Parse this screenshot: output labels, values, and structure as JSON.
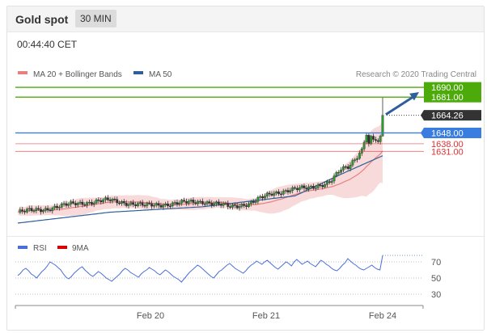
{
  "header": {
    "title": "Gold spot",
    "interval": "30 MIN",
    "time": "00:44:40 CET"
  },
  "legend": {
    "ma20": "MA 20 + Bollinger Bands",
    "ma50": "MA 50",
    "rsi": "RSI",
    "ma9": "9MA",
    "credit": "Research © 2020 Trading Central"
  },
  "colors": {
    "ma20": "#e88080",
    "bands_fill": "#f7d3d3",
    "ma50": "#2e5f9b",
    "resistance": "#4caa0a",
    "pivot": "#3a7de0",
    "support": "#e03030",
    "price_tag": "#333333",
    "arrow": "#2e5f9b",
    "rsi": "#4a6fd8",
    "rsi_ma": "#dd0000"
  },
  "chart_data": [
    {
      "type": "candlestick",
      "title": "",
      "price_levels": [
        {
          "value": 1690.0,
          "label": "1690.00",
          "kind": "resistance"
        },
        {
          "value": 1681.0,
          "label": "1681.00",
          "kind": "resistance"
        },
        {
          "value": 1664.26,
          "label": "1664.26",
          "kind": "last_price"
        },
        {
          "value": 1648.0,
          "label": "1648.00",
          "kind": "pivot"
        },
        {
          "value": 1638.0,
          "label": "1638.00",
          "kind": "support"
        },
        {
          "value": 1631.0,
          "label": "1631.00",
          "kind": "support"
        }
      ],
      "ylim": [
        1562,
        1696
      ],
      "x_tick_labels": [
        "Feb 20",
        "Feb 21",
        "Feb 24"
      ],
      "bars": 150,
      "close_path": [
        [
          0,
          1575
        ],
        [
          12,
          1578
        ],
        [
          25,
          1583
        ],
        [
          40,
          1586
        ],
        [
          55,
          1581
        ],
        [
          68,
          1583
        ],
        [
          80,
          1585
        ],
        [
          92,
          1580
        ],
        [
          100,
          1583
        ],
        [
          110,
          1592
        ],
        [
          118,
          1596
        ],
        [
          126,
          1597
        ],
        [
          135,
          1603
        ],
        [
          140,
          1614
        ],
        [
          143,
          1616
        ],
        [
          146,
          1624
        ],
        [
          149,
          1633
        ],
        [
          151,
          1646
        ],
        [
          152,
          1638
        ],
        [
          153,
          1645
        ],
        [
          154,
          1642
        ],
        [
          155,
          1641
        ],
        [
          156,
          1640
        ],
        [
          157,
          1645
        ],
        [
          158,
          1664.26
        ]
      ],
      "ma50_path": [
        [
          0,
          1565
        ],
        [
          40,
          1575
        ],
        [
          80,
          1580
        ],
        [
          120,
          1590
        ],
        [
          140,
          1610
        ],
        [
          158,
          1627
        ]
      ],
      "forecast_arrow": {
        "from": 1664.26,
        "to": 1690.0
      },
      "legend": [
        "MA 20 + Bollinger Bands",
        "MA 50"
      ]
    },
    {
      "type": "line",
      "title": "",
      "series": [
        {
          "name": "RSI",
          "values": [
            53,
            56,
            60,
            62,
            59,
            55,
            53,
            50,
            54,
            58,
            61,
            65,
            70,
            68,
            66,
            63,
            60,
            55,
            51,
            49,
            52,
            56,
            59,
            62,
            64,
            60,
            57,
            54,
            52,
            55,
            58,
            56,
            53,
            50,
            48,
            46,
            49,
            52,
            55,
            59,
            62,
            60,
            57,
            55,
            53,
            51,
            55,
            58,
            60,
            63,
            61,
            59,
            56,
            54,
            57,
            60,
            58,
            55,
            52,
            50,
            48,
            45,
            49,
            53,
            57,
            60,
            63,
            66,
            64,
            61,
            58,
            55,
            52,
            50,
            54,
            58,
            60,
            63,
            66,
            68,
            65,
            62,
            60,
            58,
            56,
            59,
            63,
            66,
            68,
            71,
            69,
            67,
            70,
            72,
            69,
            66,
            63,
            61,
            64,
            67,
            70,
            68,
            65,
            70,
            73,
            70,
            67,
            69,
            71,
            68,
            66,
            64,
            68,
            72,
            70,
            67,
            65,
            62,
            60,
            59,
            62,
            66,
            69,
            74,
            71,
            68,
            66,
            63,
            61,
            60,
            62,
            64,
            66,
            63,
            61,
            60,
            78
          ]
        },
        {
          "name": "9MA",
          "values": []
        }
      ],
      "ylim": [
        22,
        80
      ],
      "y_ticks": [
        70,
        50,
        30
      ],
      "x_tick_labels": [
        "Feb 20",
        "Feb 21",
        "Feb 24"
      ],
      "legend": [
        "RSI",
        "9MA"
      ]
    }
  ]
}
